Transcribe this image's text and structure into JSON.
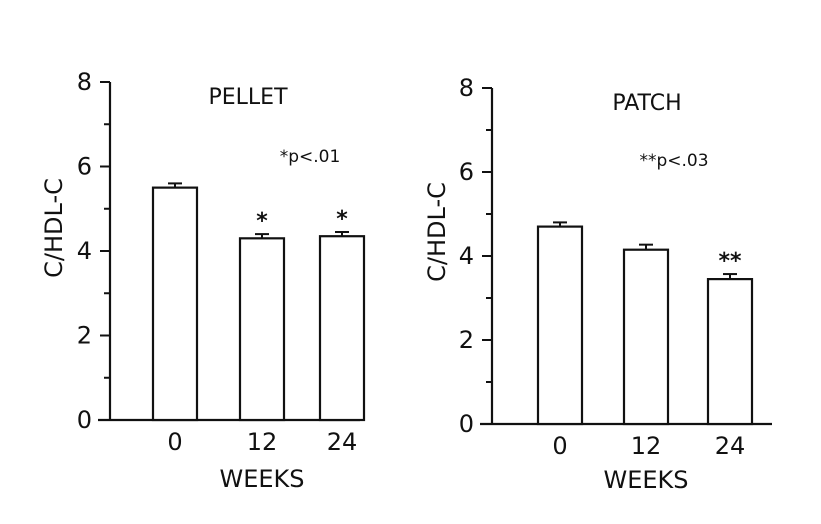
{
  "chart_data": [
    {
      "type": "bar",
      "title": "PELLET",
      "xlabel": "WEEKS",
      "ylabel": "C/HDL-C",
      "ylim": [
        0,
        8
      ],
      "yticks": [
        "0",
        "2",
        "4",
        "6",
        "8"
      ],
      "categories": [
        "0",
        "12",
        "24"
      ],
      "values": [
        5.5,
        4.3,
        4.35
      ],
      "errors": [
        0.1,
        0.1,
        0.1
      ],
      "bar_labels": [
        "",
        "*",
        "*"
      ],
      "annotation": "*p<.01",
      "grid": false
    },
    {
      "type": "bar",
      "title": "PATCH",
      "xlabel": "WEEKS",
      "ylabel": "C/HDL-C",
      "ylim": [
        0,
        8
      ],
      "yticks": [
        "0",
        "2",
        "4",
        "6",
        "8"
      ],
      "categories": [
        "0",
        "12",
        "24"
      ],
      "values": [
        4.7,
        4.15,
        3.45
      ],
      "errors": [
        0.1,
        0.12,
        0.12
      ],
      "bar_labels": [
        "",
        "",
        "**"
      ],
      "annotation": "**p<.03",
      "grid": false
    }
  ]
}
